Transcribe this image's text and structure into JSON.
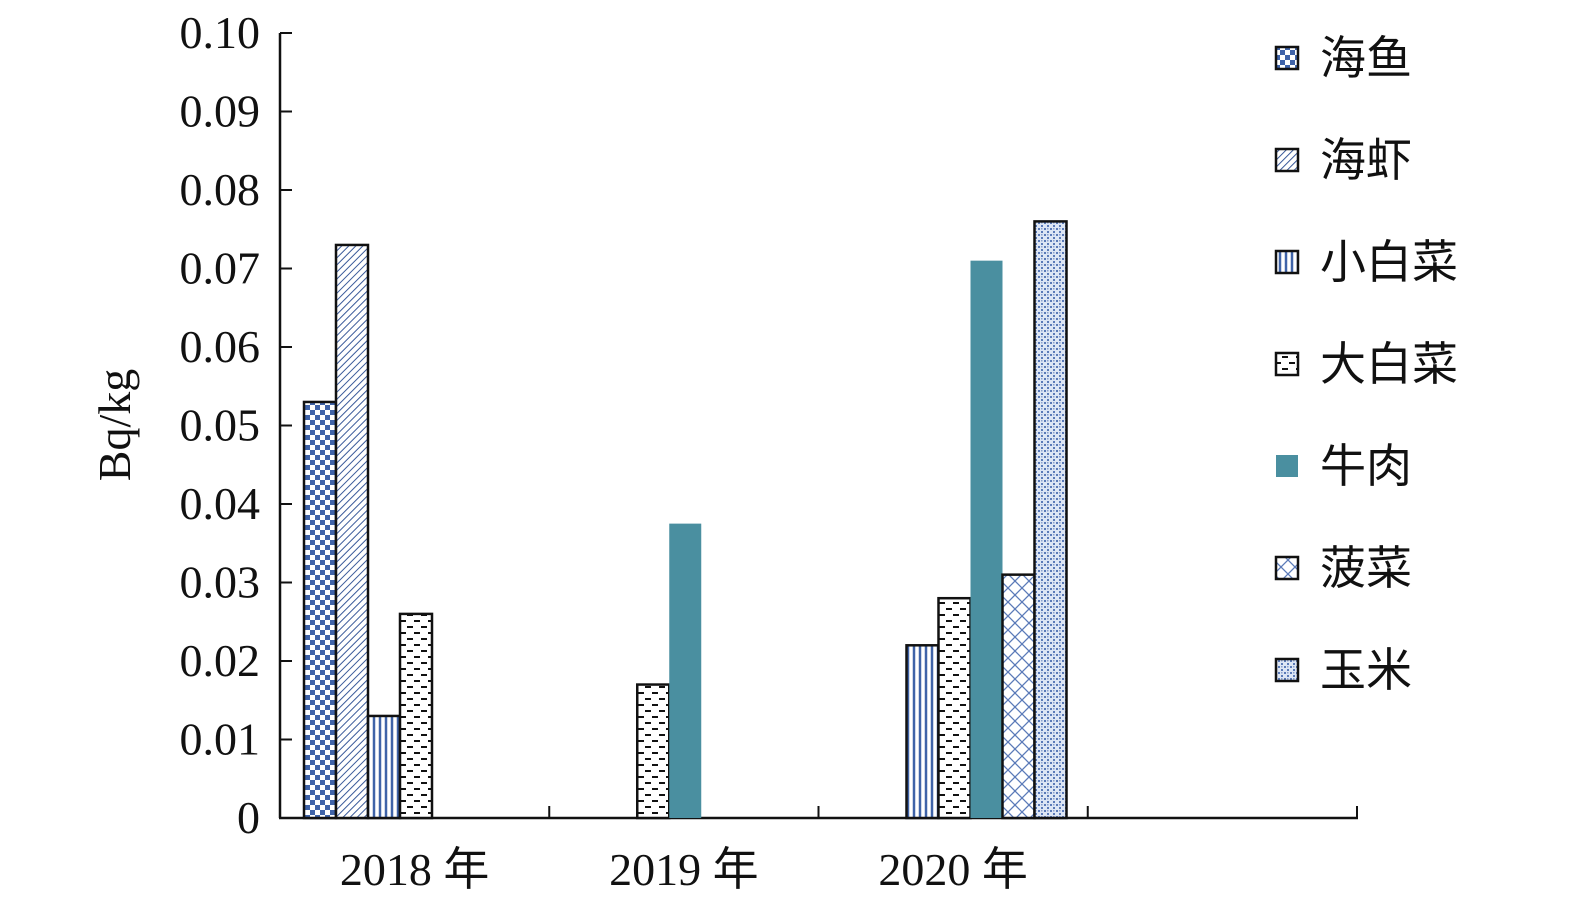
{
  "chart_data": {
    "type": "bar",
    "ylabel": "Bq/kg",
    "ylim": [
      0,
      0.1
    ],
    "yticks": [
      "0",
      "0.01",
      "0.02",
      "0.03",
      "0.04",
      "0.05",
      "0.06",
      "0.07",
      "0.08",
      "0.09",
      "0.10"
    ],
    "categories": [
      "2018 年",
      "2019 年",
      "2020 年",
      ""
    ],
    "legend_position": "right",
    "series": [
      {
        "name": "海鱼",
        "pattern": "checker",
        "color": "#3f63a8",
        "values": [
          0.053,
          null,
          null,
          null
        ]
      },
      {
        "name": "海虾",
        "pattern": "diag",
        "color": "#3a5a9a",
        "values": [
          0.073,
          null,
          null,
          null
        ]
      },
      {
        "name": "小白菜",
        "pattern": "vlines",
        "color": "#3f63a8",
        "values": [
          0.013,
          null,
          0.022,
          null
        ]
      },
      {
        "name": "大白菜",
        "pattern": "dashes",
        "color": "#111111",
        "values": [
          0.026,
          0.017,
          0.028,
          null
        ]
      },
      {
        "name": "牛肉",
        "pattern": "solid",
        "color": "#4a8fa0",
        "values": [
          null,
          0.0375,
          0.071,
          null
        ]
      },
      {
        "name": "菠菜",
        "pattern": "cross",
        "color": "#5a7ab8",
        "values": [
          null,
          null,
          0.031,
          null
        ]
      },
      {
        "name": "玉米",
        "pattern": "dots",
        "color": "#5a7ab8",
        "values": [
          null,
          null,
          0.076,
          null
        ]
      }
    ]
  }
}
